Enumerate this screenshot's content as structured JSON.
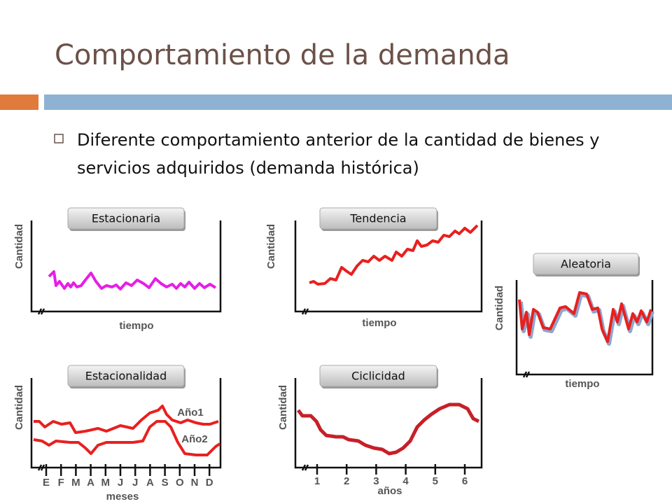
{
  "header": {
    "title": "Comportamiento de la demanda"
  },
  "bullets": [
    "Diferente comportamiento anterior de la cantidad de bienes y servicios adquiridos (demanda histórica)"
  ],
  "panels": [
    {
      "label": "Estacionaria",
      "y_label": "Cantidad",
      "x_label": "tiempo"
    },
    {
      "label": "Tendencia",
      "y_label": "Cantidad",
      "x_label": "tiempo"
    },
    {
      "label": "Aleatoria",
      "y_label": "Cantidad",
      "x_label": "tiempo"
    },
    {
      "label": "Estacionalidad",
      "y_label": "Cantidad",
      "x_label": "meses"
    },
    {
      "label": "Ciclicidad",
      "y_label": "Cantidad",
      "x_label": "años"
    }
  ],
  "months": [
    "E",
    "F",
    "M",
    "A",
    "M",
    "J",
    "J",
    "A",
    "S",
    "O",
    "N",
    "D"
  ],
  "years": [
    1,
    2,
    3,
    4,
    5,
    6
  ],
  "series_labels": [
    "Año1",
    "Año2"
  ]
}
